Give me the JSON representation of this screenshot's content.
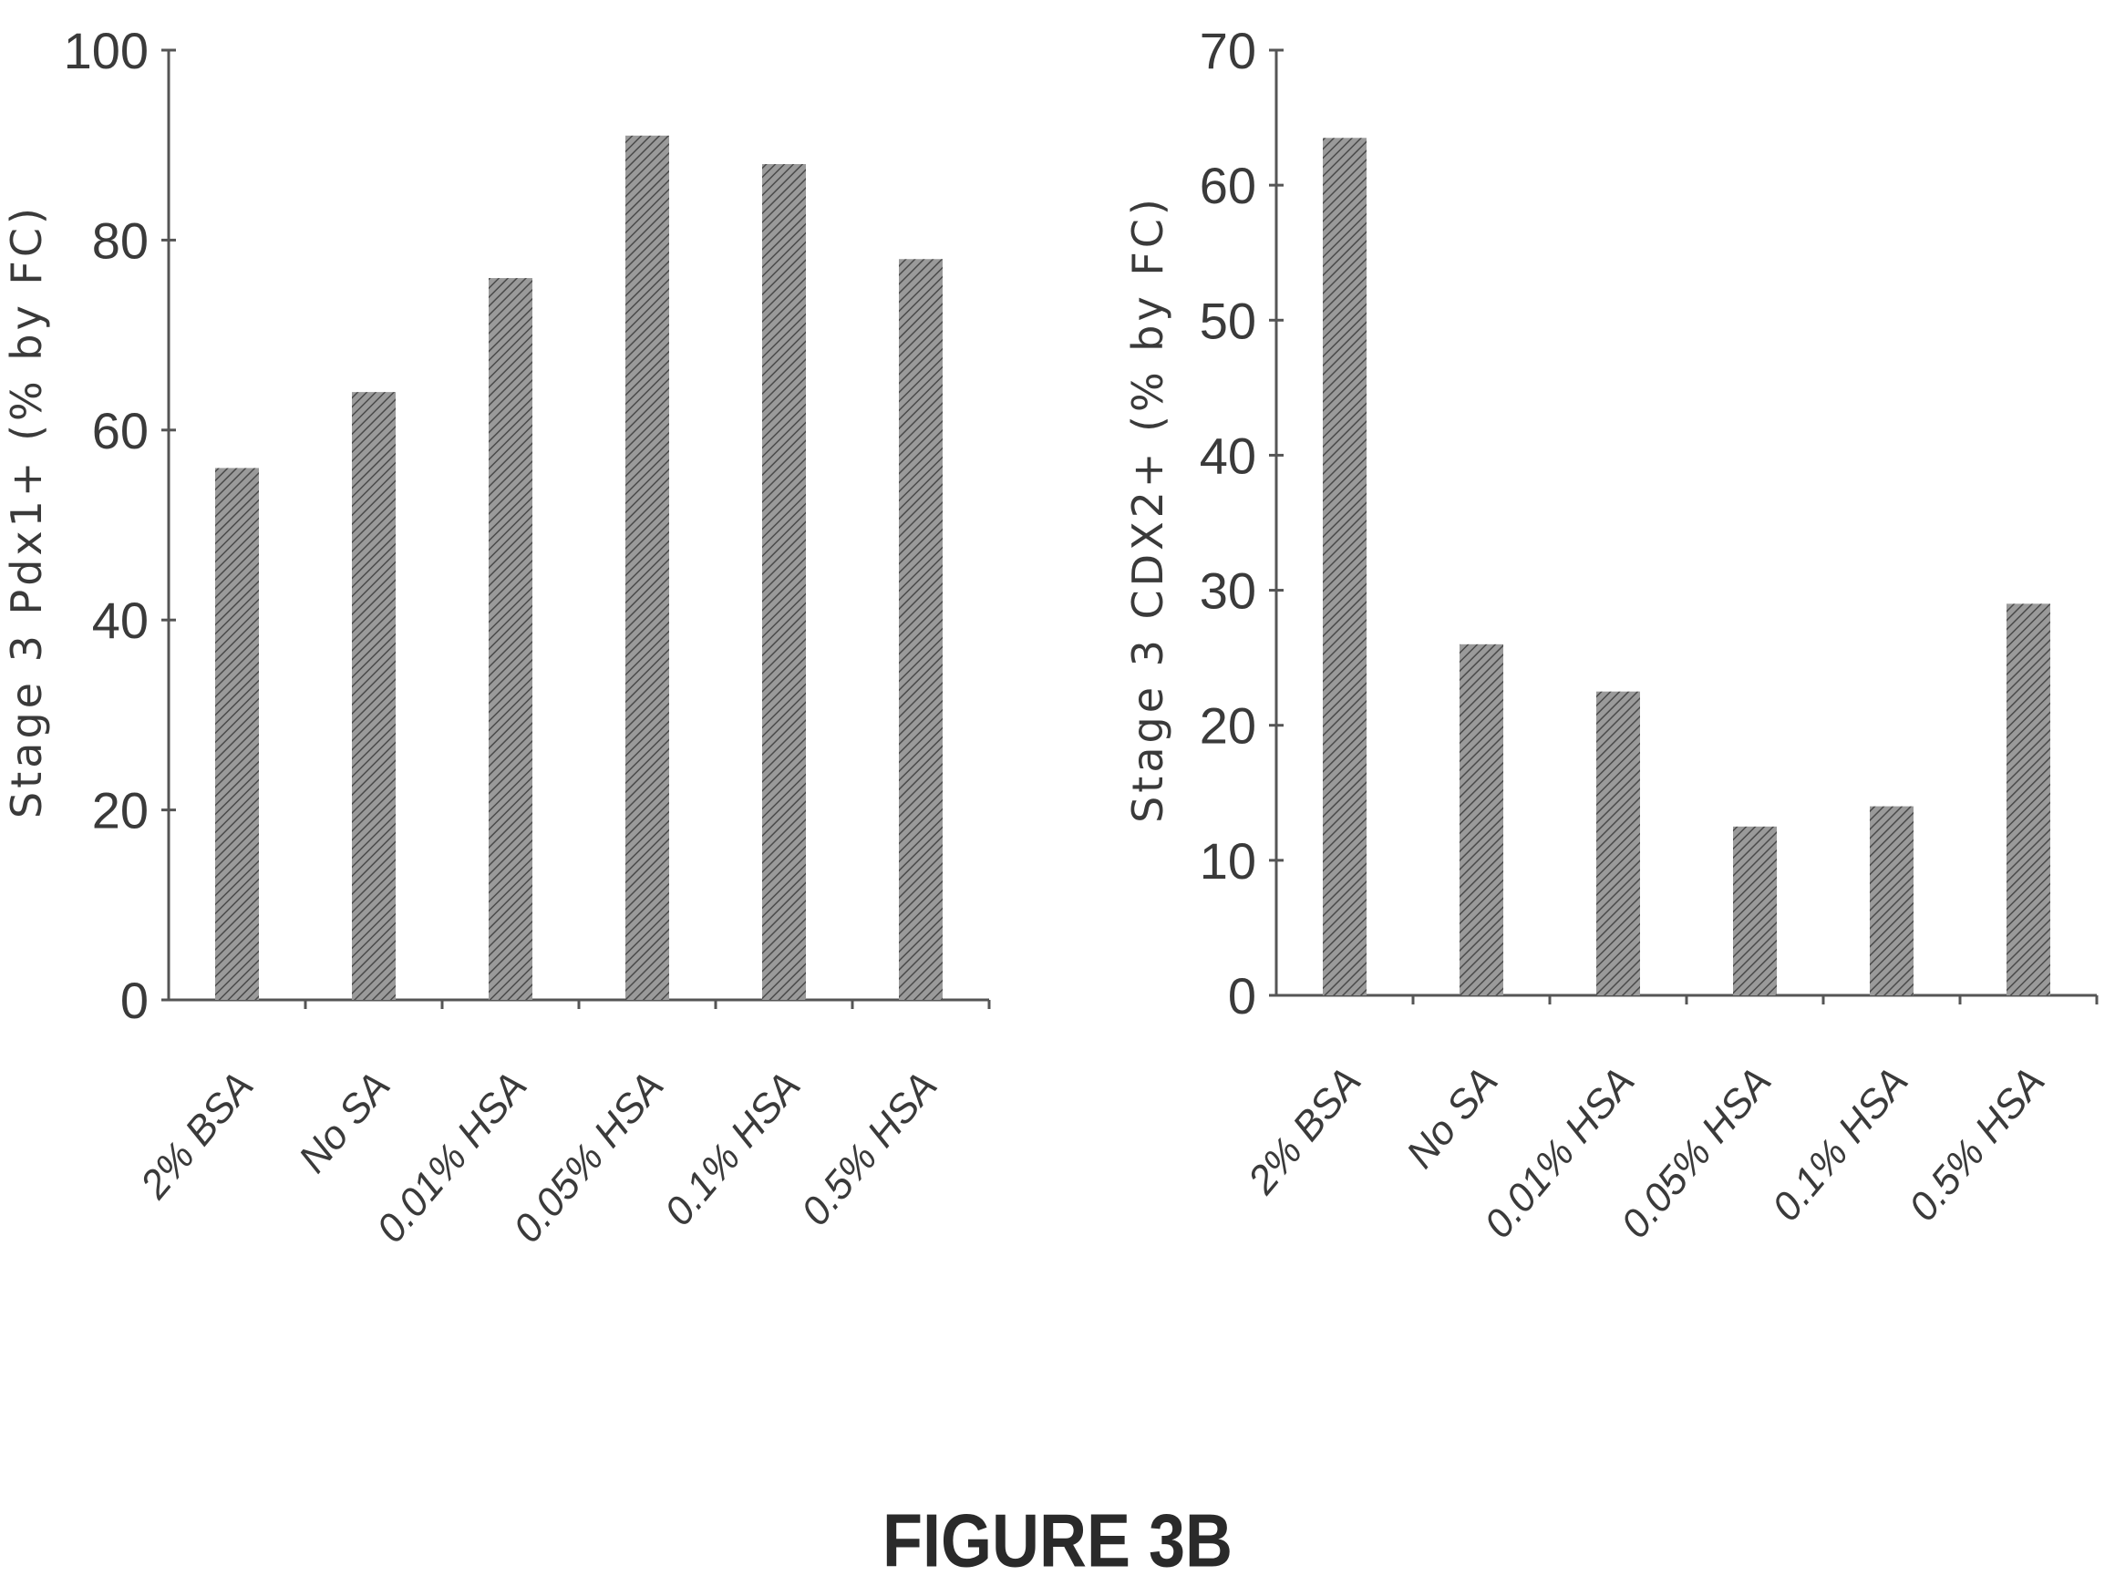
{
  "figure_caption": "FIGURE 3B",
  "chart_data": [
    {
      "type": "bar",
      "title": "",
      "xlabel": "",
      "ylabel": "Stage 3 Pdx1+ (% by FC)",
      "categories": [
        "2% BSA",
        "No SA",
        "0.01% HSA",
        "0.05% HSA",
        "0.1% HSA",
        "0.5% HSA"
      ],
      "values": [
        56,
        64,
        76,
        91,
        88,
        78
      ],
      "ylim": [
        0,
        100
      ],
      "yticks": [
        0,
        20,
        40,
        60,
        80,
        100
      ],
      "grid": false,
      "legend": "none"
    },
    {
      "type": "bar",
      "title": "",
      "xlabel": "",
      "ylabel": "Stage 3 CDX2+ (% by FC)",
      "categories": [
        "2% BSA",
        "No SA",
        "0.01% HSA",
        "0.05% HSA",
        "0.1% HSA",
        "0.5% HSA"
      ],
      "values": [
        63.5,
        26,
        22.5,
        12.5,
        14,
        29
      ],
      "ylim": [
        0,
        70
      ],
      "yticks": [
        0,
        10,
        20,
        30,
        40,
        50,
        60,
        70
      ],
      "grid": false,
      "legend": "none"
    }
  ]
}
